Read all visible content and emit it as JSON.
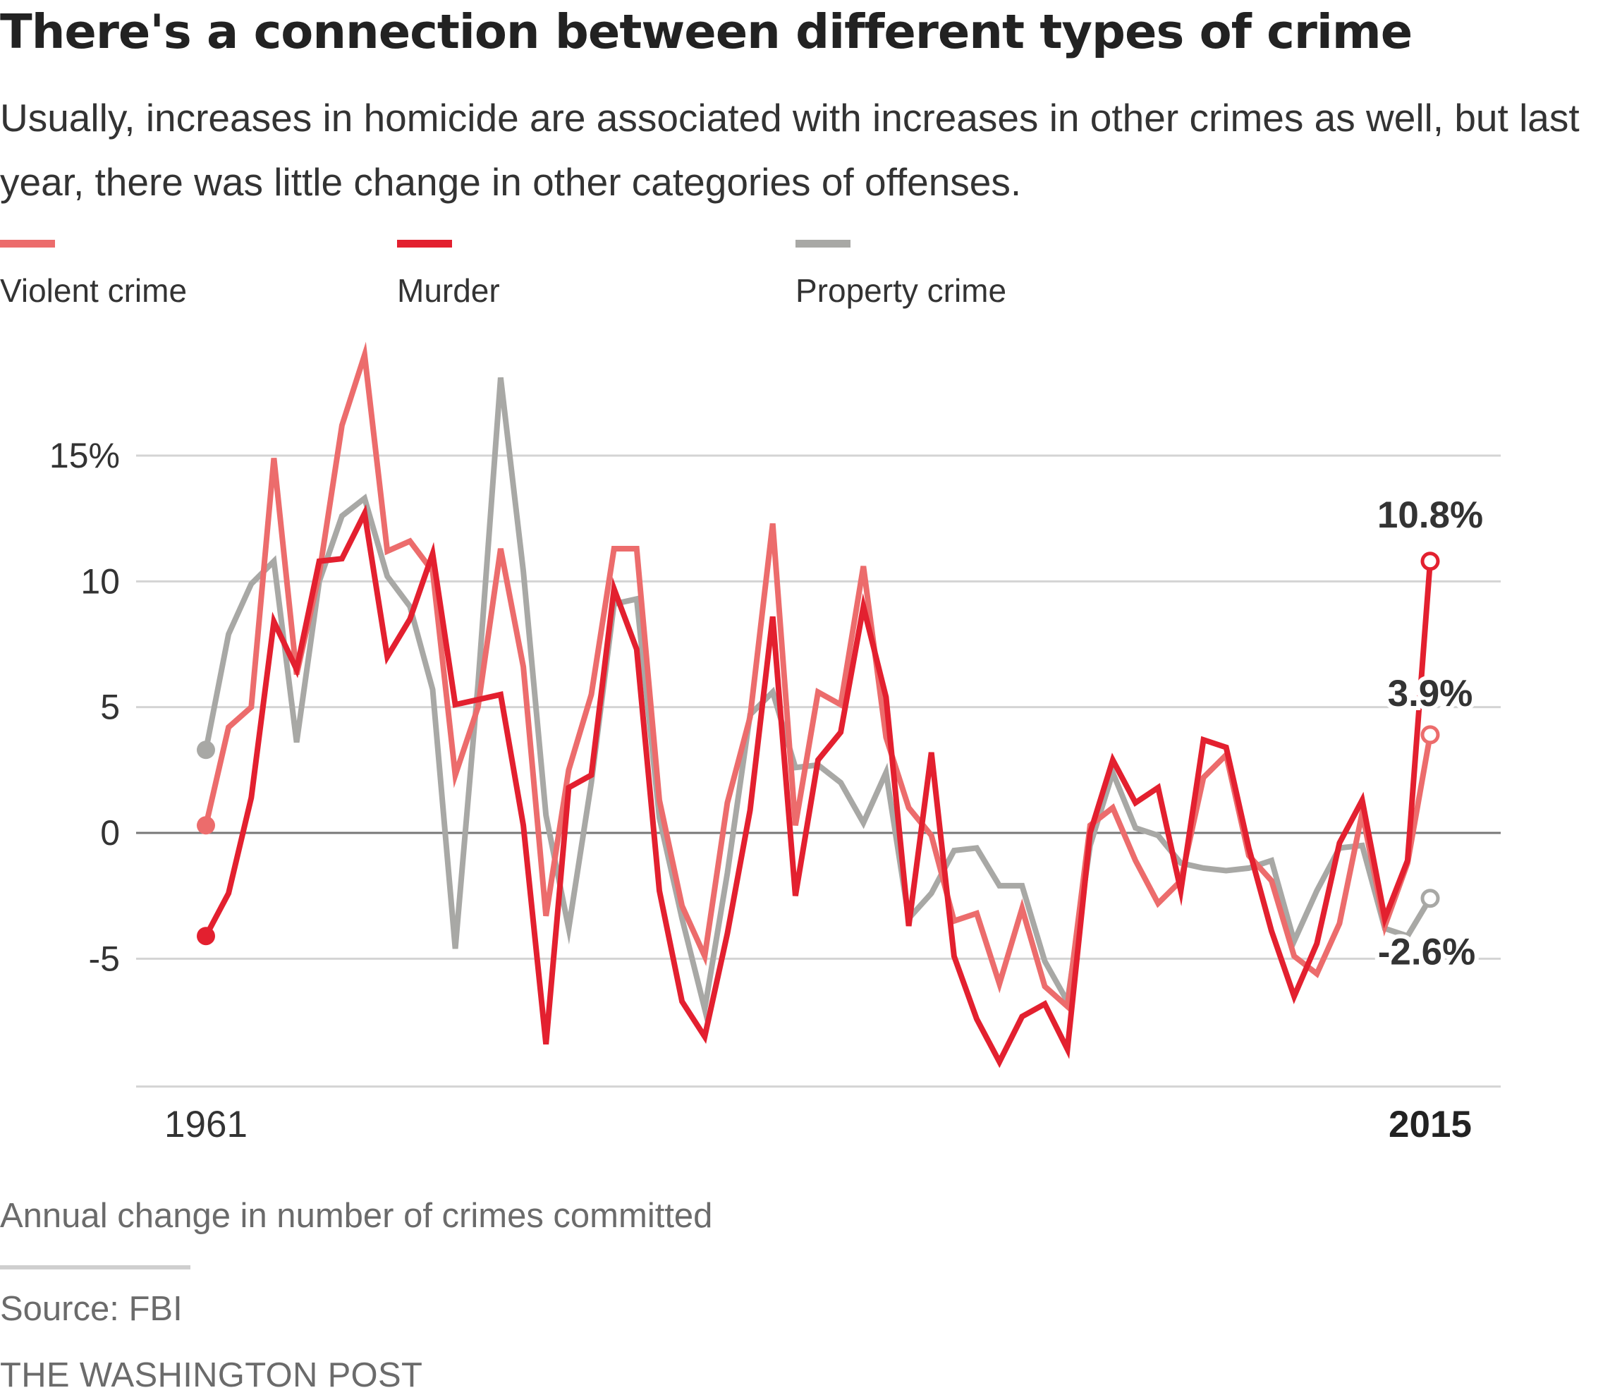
{
  "title": "There's a connection between different types of crime",
  "subtitle": "Usually, increases in homicide are associated with increases in other crimes as well, but last year, there was little change in other categories of offenses.",
  "legend": [
    {
      "label": "Violent crime",
      "color": "#ec6c6c"
    },
    {
      "label": "Murder",
      "color": "#e3202f"
    },
    {
      "label": "Property crime",
      "color": "#a8a8a5"
    }
  ],
  "note": "Annual change in number of crimes committed",
  "source": "Source: FBI",
  "credit": "THE WASHINGTON POST",
  "chart_data": {
    "type": "line",
    "x": [
      1961,
      1962,
      1963,
      1964,
      1965,
      1966,
      1967,
      1968,
      1969,
      1970,
      1971,
      1972,
      1973,
      1974,
      1975,
      1976,
      1977,
      1978,
      1979,
      1980,
      1981,
      1982,
      1983,
      1984,
      1985,
      1986,
      1987,
      1988,
      1989,
      1990,
      1991,
      1992,
      1993,
      1994,
      1995,
      1996,
      1997,
      1998,
      1999,
      2000,
      2001,
      2002,
      2003,
      2004,
      2005,
      2006,
      2007,
      2008,
      2009,
      2010,
      2011,
      2012,
      2013,
      2014,
      2015
    ],
    "x_tick_labels": [
      "1961",
      "2015"
    ],
    "y_ticks": [
      15,
      10,
      5,
      0,
      -5
    ],
    "y_tick_labels": [
      "15%",
      "10",
      "5",
      "0",
      "-5"
    ],
    "ylim": [
      -10,
      19
    ],
    "grid": true,
    "series": [
      {
        "name": "Violent crime",
        "color": "#ec6c6c",
        "end_label": "3.9%",
        "values": [
          0.3,
          4.2,
          5.0,
          14.9,
          6.3,
          10.3,
          16.2,
          19.0,
          11.2,
          11.6,
          10.4,
          2.3,
          5.0,
          11.3,
          6.6,
          -3.3,
          2.5,
          5.5,
          11.3,
          11.3,
          1.3,
          -2.9,
          -4.9,
          1.2,
          4.6,
          12.3,
          0.3,
          5.6,
          5.1,
          10.6,
          3.8,
          1.0,
          -0.1,
          -3.5,
          -3.2,
          -6.0,
          -3.0,
          -6.1,
          -6.9,
          0.3,
          1.0,
          -1.1,
          -2.8,
          -1.9,
          2.2,
          3.1,
          -0.9,
          -1.9,
          -4.9,
          -5.6,
          -3.6,
          0.8,
          -3.7,
          -1.2,
          3.9
        ]
      },
      {
        "name": "Murder",
        "color": "#e3202f",
        "end_label": "10.8%",
        "values": [
          -4.1,
          -2.4,
          1.4,
          8.4,
          6.5,
          10.8,
          10.9,
          12.7,
          7.0,
          8.5,
          11.1,
          5.1,
          5.3,
          5.5,
          0.3,
          -8.4,
          1.8,
          2.3,
          9.7,
          7.3,
          -2.3,
          -6.7,
          -8.1,
          -4.0,
          0.9,
          8.6,
          -2.5,
          2.9,
          4.0,
          9.0,
          5.4,
          -3.7,
          3.2,
          -4.9,
          -7.4,
          -9.1,
          -7.3,
          -6.8,
          -8.6,
          0.0,
          2.9,
          1.2,
          1.8,
          -2.3,
          3.7,
          3.4,
          -0.6,
          -3.9,
          -6.5,
          -4.4,
          -0.4,
          1.3,
          -3.4,
          -1.1,
          10.8
        ]
      },
      {
        "name": "Property crime",
        "color": "#a8a8a5",
        "end_label": "-2.6%",
        "values": [
          3.3,
          7.9,
          9.9,
          10.8,
          3.6,
          10.0,
          12.6,
          13.3,
          10.2,
          9.0,
          5.7,
          -4.6,
          5.9,
          18.1,
          10.4,
          0.7,
          -3.8,
          2.0,
          9.1,
          9.3,
          0.6,
          -3.4,
          -7.0,
          -1.6,
          4.7,
          5.6,
          2.6,
          2.7,
          2.0,
          0.4,
          2.4,
          -3.4,
          -2.4,
          -0.7,
          -0.6,
          -2.1,
          -2.1,
          -5.1,
          -6.7,
          -0.5,
          2.4,
          0.2,
          -0.1,
          -1.2,
          -1.4,
          -1.5,
          -1.4,
          -1.1,
          -4.3,
          -2.3,
          -0.6,
          -0.5,
          -3.8,
          -4.1,
          -2.6
        ]
      }
    ]
  }
}
